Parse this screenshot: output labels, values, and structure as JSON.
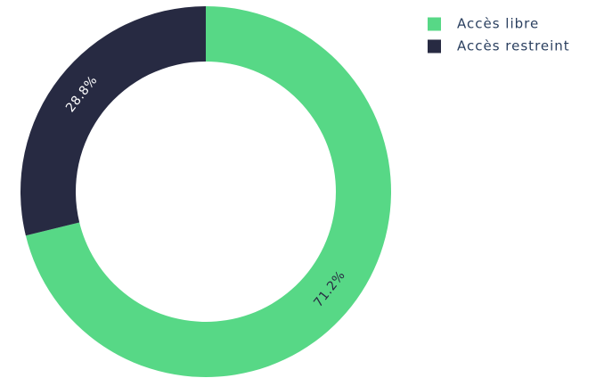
{
  "chart_data": {
    "type": "pie",
    "categories": [
      "Accès libre",
      "Accès restreint"
    ],
    "values": [
      71.2,
      28.8
    ],
    "value_labels": [
      "71.2%",
      "28.8%"
    ],
    "colors": [
      "#57d886",
      "#272a42"
    ],
    "label_colors": [
      "#272a42",
      "#ffffff"
    ],
    "legend": "top-right"
  }
}
